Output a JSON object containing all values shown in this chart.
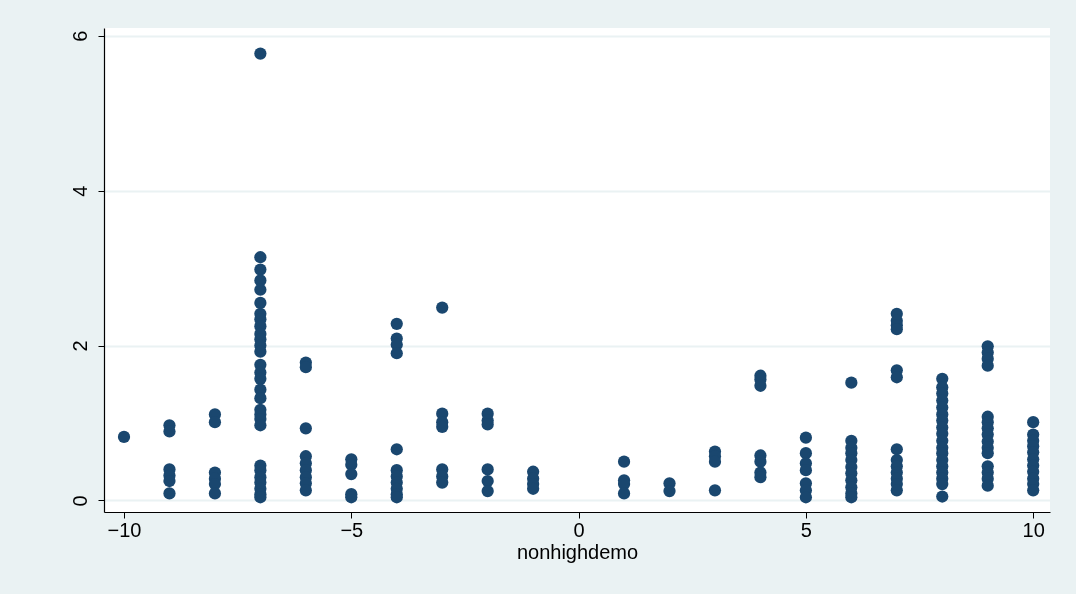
{
  "chart_data": {
    "type": "scatter",
    "xlabel": "nonhighdemo",
    "marker": "circle",
    "grid": "y",
    "xlim": [
      -10.44,
      10.37
    ],
    "ylim": [
      -0.15,
      6.1
    ],
    "xticks": [
      -10,
      -5,
      0,
      5,
      10
    ],
    "yticks": [
      0,
      2,
      4,
      6
    ],
    "series": [
      {
        "color": "#1a476f",
        "x": [
          -10,
          -9,
          -9,
          -9,
          -9,
          -9,
          -9,
          -8,
          -8,
          -8,
          -8,
          -8,
          -8,
          -7,
          -7,
          -7,
          -7,
          -7,
          -7,
          -7,
          -7,
          -7,
          -7,
          -7,
          -7,
          -7,
          -7,
          -7,
          -7,
          -7,
          -7,
          -7,
          -7,
          -7,
          -7,
          -7,
          -7,
          -7,
          -7,
          -7,
          -7,
          -7,
          -6,
          -6,
          -6,
          -6,
          -6,
          -6,
          -6,
          -6,
          -6,
          -5,
          -5,
          -5,
          -5,
          -5,
          -4,
          -4,
          -4,
          -4,
          -4,
          -4,
          -4,
          -4,
          -4,
          -4,
          -4,
          -3,
          -3,
          -3,
          -3,
          -3,
          -3,
          -3,
          -2,
          -2,
          -2,
          -2,
          -2,
          -2,
          -1,
          -1,
          -1,
          -1,
          1,
          1,
          1,
          1,
          2,
          2,
          3,
          3,
          3,
          3,
          4,
          4,
          4,
          4,
          4,
          4,
          4,
          5,
          5,
          5,
          5,
          5,
          5,
          5,
          6,
          6,
          6,
          6,
          6,
          6,
          6,
          6,
          6,
          6,
          6,
          7,
          7,
          7,
          7,
          7,
          7,
          7,
          7,
          7,
          7,
          7,
          7,
          7,
          8,
          8,
          8,
          8,
          8,
          8,
          8,
          8,
          8,
          8,
          8,
          8,
          8,
          8,
          8,
          8,
          8,
          8,
          9,
          9,
          9,
          9,
          9,
          9,
          9,
          9,
          9,
          9,
          9,
          9,
          9,
          9,
          9,
          10,
          10,
          10,
          10,
          10,
          10,
          10,
          10,
          10,
          10,
          10
        ],
        "values": [
          0.82,
          0.97,
          0.89,
          0.4,
          0.32,
          0.25,
          0.09,
          1.11,
          1.01,
          0.36,
          0.28,
          0.21,
          0.09,
          5.77,
          3.14,
          2.98,
          2.84,
          2.72,
          2.55,
          2.41,
          2.34,
          2.25,
          2.15,
          2.08,
          2.0,
          1.92,
          1.75,
          1.65,
          1.57,
          1.43,
          1.32,
          1.17,
          1.11,
          1.05,
          0.97,
          0.45,
          0.39,
          0.3,
          0.23,
          0.15,
          0.08,
          0.04,
          1.78,
          1.72,
          0.93,
          0.57,
          0.48,
          0.39,
          0.3,
          0.22,
          0.13,
          0.53,
          0.46,
          0.34,
          0.08,
          0.04,
          2.28,
          2.09,
          2.01,
          1.9,
          0.66,
          0.39,
          0.31,
          0.23,
          0.15,
          0.08,
          0.04,
          2.49,
          1.12,
          1.01,
          0.95,
          0.4,
          0.31,
          0.23,
          1.12,
          1.03,
          0.98,
          0.4,
          0.25,
          0.12,
          0.37,
          0.28,
          0.21,
          0.15,
          0.5,
          0.26,
          0.21,
          0.09,
          0.22,
          0.12,
          0.63,
          0.57,
          0.5,
          0.13,
          1.61,
          1.56,
          1.48,
          0.58,
          0.5,
          0.36,
          0.3,
          0.81,
          0.61,
          0.48,
          0.39,
          0.22,
          0.13,
          0.04,
          1.52,
          0.77,
          0.68,
          0.61,
          0.52,
          0.43,
          0.35,
          0.26,
          0.17,
          0.09,
          0.04,
          2.41,
          2.32,
          2.26,
          2.21,
          1.68,
          1.59,
          0.66,
          0.52,
          0.44,
          0.36,
          0.28,
          0.21,
          0.13,
          1.57,
          1.46,
          1.38,
          1.29,
          1.2,
          1.11,
          1.03,
          0.94,
          0.86,
          0.77,
          0.68,
          0.61,
          0.52,
          0.44,
          0.36,
          0.28,
          0.21,
          0.05,
          1.99,
          1.91,
          1.83,
          1.74,
          1.08,
          1.01,
          0.93,
          0.85,
          0.76,
          0.68,
          0.61,
          0.44,
          0.36,
          0.28,
          0.19,
          1.01,
          0.85,
          0.77,
          0.7,
          0.62,
          0.53,
          0.45,
          0.37,
          0.28,
          0.21,
          0.13
        ]
      }
    ]
  }
}
